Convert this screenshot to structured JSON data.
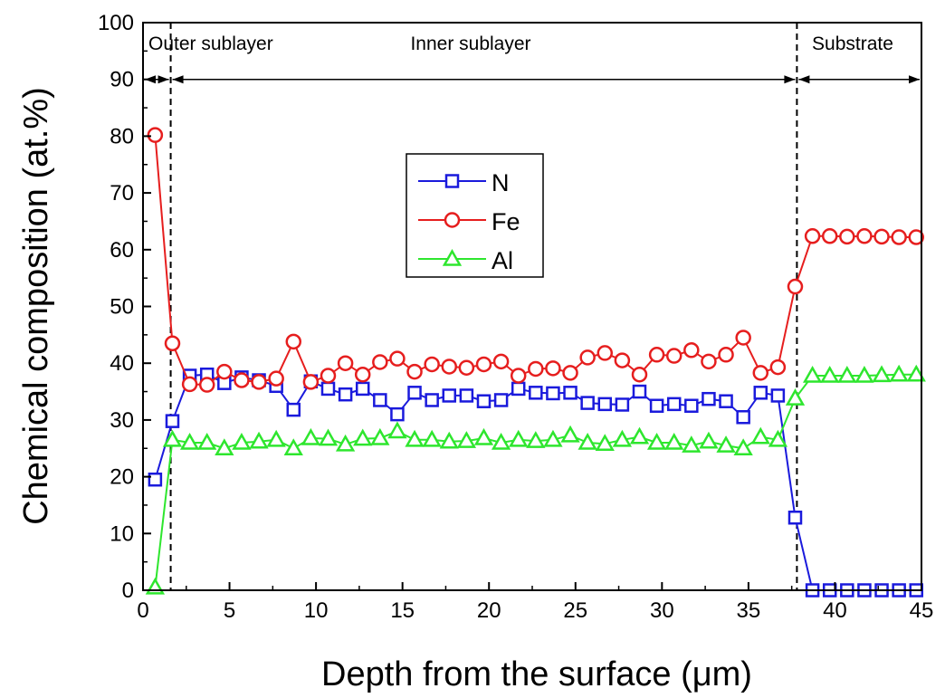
{
  "chart_data": {
    "type": "line",
    "xlabel": "Depth from the surface (μm)",
    "ylabel": "Chemical composition (at.%)",
    "xlim": [
      0,
      45
    ],
    "ylim": [
      0,
      100
    ],
    "x_ticks": [
      0,
      5,
      10,
      15,
      20,
      25,
      30,
      35,
      40,
      45
    ],
    "y_ticks": [
      0,
      10,
      20,
      30,
      40,
      50,
      60,
      70,
      80,
      90,
      100
    ],
    "grid": false,
    "legend_position": "center-left",
    "region_boundaries": [
      0,
      1.6,
      37.8
    ],
    "regions": [
      {
        "label": "Outer sublayer",
        "from": 0,
        "to": 1.6
      },
      {
        "label": "Inner sublayer",
        "from": 1.6,
        "to": 37.8
      },
      {
        "label": "Substrate",
        "from": 37.8,
        "to": 45
      }
    ],
    "x": [
      0.7,
      1.7,
      2.7,
      3.7,
      4.7,
      5.7,
      6.7,
      7.7,
      8.7,
      9.7,
      10.7,
      11.7,
      12.7,
      13.7,
      14.7,
      15.7,
      16.7,
      17.7,
      18.7,
      19.7,
      20.7,
      21.7,
      22.7,
      23.7,
      24.7,
      25.7,
      26.7,
      27.7,
      28.7,
      29.7,
      30.7,
      31.7,
      32.7,
      33.7,
      34.7,
      35.7,
      36.7,
      37.7,
      38.7,
      39.7,
      40.7,
      41.7,
      42.7,
      43.7,
      44.7
    ],
    "series": [
      {
        "name": "N",
        "color": "#1a1adc",
        "marker": "square",
        "values": [
          19.5,
          29.8,
          37.8,
          38,
          36.5,
          37.5,
          37,
          36,
          31.8,
          36.8,
          35.5,
          34.5,
          35.5,
          33.5,
          31,
          34.8,
          33.5,
          34.3,
          34.3,
          33.3,
          33.5,
          35.5,
          34.8,
          34.7,
          34.8,
          33,
          32.8,
          32.7,
          35,
          32.5,
          32.8,
          32.5,
          33.7,
          33.3,
          30.5,
          34.8,
          34.3,
          12.8,
          0,
          0,
          0,
          0,
          0,
          0,
          0
        ]
      },
      {
        "name": "Fe",
        "color": "#e61e1e",
        "marker": "circle",
        "values": [
          80.2,
          43.5,
          36.3,
          36.2,
          38.5,
          37,
          36.7,
          37.3,
          43.8,
          36.7,
          37.8,
          40,
          38,
          40.2,
          40.8,
          38.5,
          39.8,
          39.4,
          39.2,
          39.8,
          40.3,
          37.8,
          39,
          39.1,
          38.3,
          41,
          41.8,
          40.5,
          38,
          41.5,
          41.3,
          42.3,
          40.3,
          41.5,
          44.5,
          38.3,
          39.3,
          53.5,
          62.4,
          62.4,
          62.3,
          62.4,
          62.3,
          62.2,
          62.2
        ]
      },
      {
        "name": "Al",
        "color": "#2ee62e",
        "marker": "triangle",
        "values": [
          0.5,
          26.5,
          26,
          26,
          25,
          26,
          26.2,
          26.5,
          25,
          26.8,
          26.7,
          25.7,
          26.7,
          26.8,
          28,
          26.5,
          26.5,
          26.2,
          26.3,
          26.8,
          26,
          26.5,
          26.3,
          26.5,
          27.3,
          26,
          25.8,
          26.5,
          27,
          26,
          26,
          25.5,
          26.2,
          25.5,
          25,
          27,
          26.5,
          33.8,
          37.8,
          37.8,
          37.8,
          37.8,
          37.9,
          38,
          38
        ]
      }
    ]
  }
}
